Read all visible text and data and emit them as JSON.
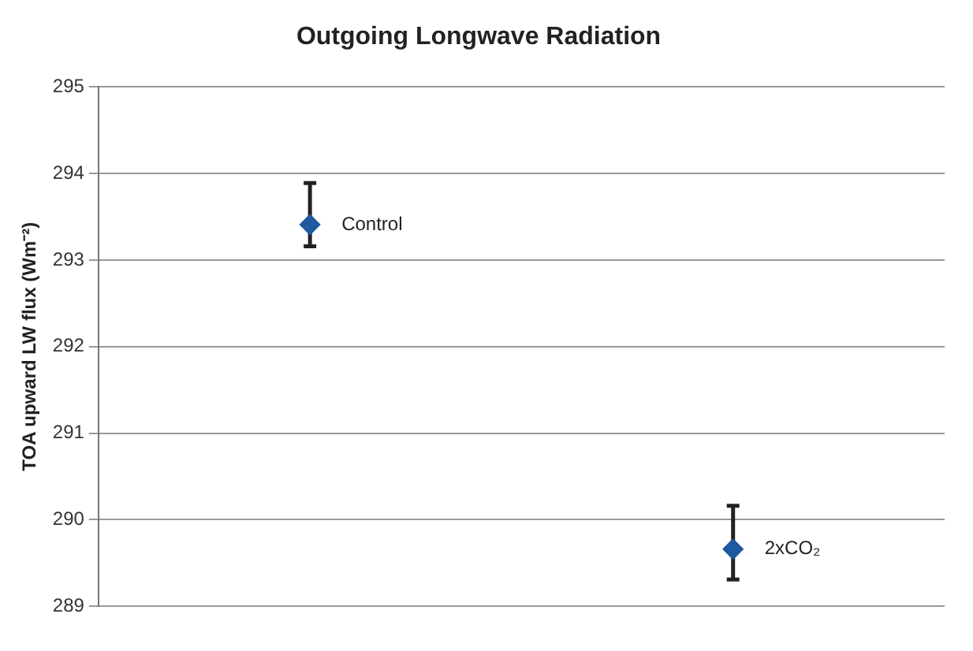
{
  "chart_data": {
    "type": "scatter",
    "title": "Outgoing Longwave Radiation",
    "ylabel": "TOA upward LW flux (Wm⁻²)",
    "categories": [
      null,
      null
    ],
    "series": [
      {
        "name": "Control",
        "color": "#1f5aa0",
        "values": [
          293.41,
          null
        ],
        "errors": [
          [
            293.16,
            293.89
          ],
          null
        ]
      },
      {
        "name": "2xCO₂",
        "color": "#1f5aa0",
        "values": [
          null,
          289.66
        ],
        "errors": [
          null,
          [
            289.31,
            290.16
          ]
        ]
      }
    ],
    "ylim": [
      289,
      295
    ],
    "yticks": [
      289,
      290,
      291,
      292,
      293,
      294,
      295
    ],
    "grid": "y",
    "legend": false,
    "marker": "diamond"
  }
}
